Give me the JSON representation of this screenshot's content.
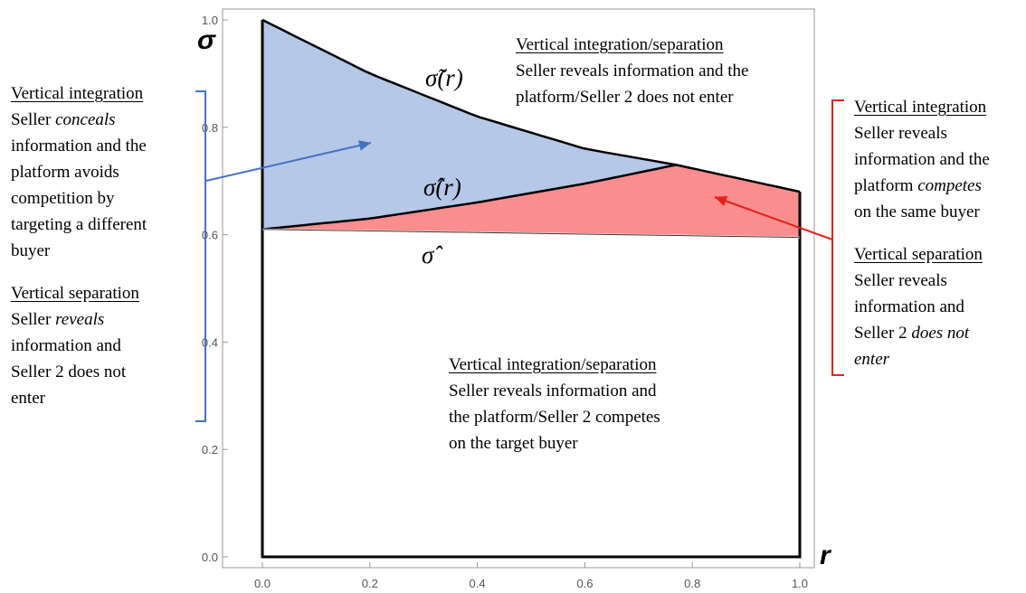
{
  "chart_data": {
    "type": "area",
    "xlabel": "r",
    "ylabel": "σ",
    "xlim": [
      0.0,
      1.0
    ],
    "ylim": [
      0.0,
      1.0
    ],
    "x_ticks": [
      "0.0",
      "0.2",
      "0.4",
      "0.6",
      "0.8",
      "1.0"
    ],
    "y_ticks": [
      "0.0",
      "0.2",
      "0.4",
      "0.6",
      "0.8",
      "1.0"
    ],
    "grid": false,
    "curves": {
      "sigma_tilde_r": {
        "label": "σ̃(r)",
        "x": [
          0.0,
          0.2,
          0.4,
          0.6,
          0.77,
          1.0
        ],
        "y": [
          1.0,
          0.9,
          0.82,
          0.76,
          0.73,
          0.68
        ]
      },
      "sigma_hat_r": {
        "label": "σ̂(r)",
        "x": [
          0.0,
          0.2,
          0.4,
          0.6,
          0.77
        ],
        "y": [
          0.61,
          0.63,
          0.66,
          0.695,
          0.73
        ]
      },
      "sigma_hat": {
        "label": "σ̂",
        "x": [
          0.0,
          1.0
        ],
        "y": [
          0.61,
          0.595
        ]
      }
    },
    "regions": [
      {
        "name": "blue",
        "color": "#b6c8e8",
        "between": [
          "sigma_hat_r",
          "sigma_tilde_r"
        ],
        "x_range": [
          0.0,
          0.77
        ]
      },
      {
        "name": "red",
        "color": "#fa8e8e",
        "between": [
          "sigma_hat",
          "sigma_hat_r/sigma_tilde_r"
        ],
        "x_range": [
          0.0,
          1.0
        ]
      }
    ]
  },
  "annotations": {
    "left": {
      "head1": "Vertical integration",
      "lines1_html": [
        "Seller <i>conceals</i>",
        "information and the",
        "platform avoids",
        "competition by",
        "targeting a different",
        "buyer"
      ],
      "head2": "Vertical separation",
      "lines2_html": [
        "Seller <i>reveals</i>",
        "information and",
        "Seller 2 does not",
        "enter"
      ]
    },
    "top": {
      "head": "Vertical integration/separation",
      "lines": [
        "Seller reveals information and the",
        "platform/Seller 2 does not enter"
      ]
    },
    "bottom": {
      "head": "Vertical integration/separation",
      "lines": [
        "Seller reveals information and",
        "the platform/Seller 2 competes",
        "on the target buyer"
      ]
    },
    "right": {
      "head1": "Vertical integration",
      "lines1_html": [
        "Seller reveals",
        "information and the",
        "platform <i>competes</i>",
        "on the same buyer"
      ],
      "head2": "Vertical separation",
      "lines2_html": [
        "Seller reveals",
        "information and",
        "Seller 2 <i>does not</i>",
        "<i>enter</i>"
      ]
    }
  },
  "colors": {
    "blue_region": "#b6c8e8",
    "red_region": "#fa8e8e",
    "blue_arrow": "#4472c4",
    "red_arrow": "#e8201a",
    "frame": "#999999"
  }
}
